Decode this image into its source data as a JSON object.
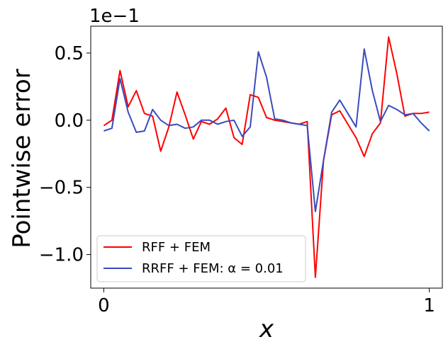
{
  "chart_data": {
    "type": "line",
    "xlabel": "x",
    "ylabel": "Pointwise error",
    "offset_text": "1e−1",
    "xlim": [
      -0.04,
      1.04
    ],
    "ylim": [
      -1.25,
      0.7
    ],
    "x_ticks": [
      0,
      1
    ],
    "x_tick_labels": [
      "0",
      "1"
    ],
    "y_ticks": [
      -1.0,
      -0.5,
      0.0,
      0.5
    ],
    "y_tick_labels": [
      "−1.0",
      "−0.5",
      "0.0",
      "0.5"
    ],
    "grid": false,
    "legend_position": "lower-left",
    "x": [
      0,
      0.025,
      0.05,
      0.075,
      0.1,
      0.125,
      0.15,
      0.175,
      0.2,
      0.225,
      0.25,
      0.275,
      0.3,
      0.325,
      0.35,
      0.375,
      0.4,
      0.425,
      0.45,
      0.475,
      0.5,
      0.525,
      0.55,
      0.575,
      0.6,
      0.625,
      0.65,
      0.675,
      0.7,
      0.725,
      0.75,
      0.775,
      0.8,
      0.825,
      0.85,
      0.875,
      0.9,
      0.925,
      0.95,
      0.975,
      1.0
    ],
    "series": [
      {
        "name": "RFF + FEM",
        "color": "#ff0000",
        "values": [
          -0.04,
          0.0,
          0.37,
          0.1,
          0.22,
          0.05,
          0.03,
          -0.23,
          -0.05,
          0.21,
          0.04,
          -0.14,
          -0.01,
          -0.03,
          0.01,
          0.09,
          -0.13,
          -0.18,
          0.19,
          0.17,
          0.02,
          0.0,
          -0.01,
          -0.02,
          -0.03,
          -0.01,
          -1.17,
          -0.3,
          0.04,
          0.07,
          -0.03,
          -0.13,
          -0.27,
          -0.1,
          -0.02,
          0.62,
          0.35,
          0.03,
          0.05,
          0.05,
          0.06
        ]
      },
      {
        "name": "RRFF + FEM: α = 0.01",
        "color": "#3a4bc0",
        "values": [
          -0.08,
          -0.06,
          0.31,
          0.06,
          -0.09,
          -0.08,
          0.08,
          0.0,
          -0.04,
          -0.03,
          -0.06,
          -0.05,
          0.0,
          0.0,
          -0.03,
          -0.01,
          0.0,
          -0.12,
          -0.05,
          0.51,
          0.32,
          0.01,
          0.0,
          -0.02,
          -0.03,
          -0.04,
          -0.68,
          -0.3,
          0.06,
          0.15,
          0.05,
          -0.05,
          0.53,
          0.22,
          -0.01,
          0.11,
          0.08,
          0.04,
          0.05,
          -0.02,
          -0.08
        ]
      }
    ]
  }
}
